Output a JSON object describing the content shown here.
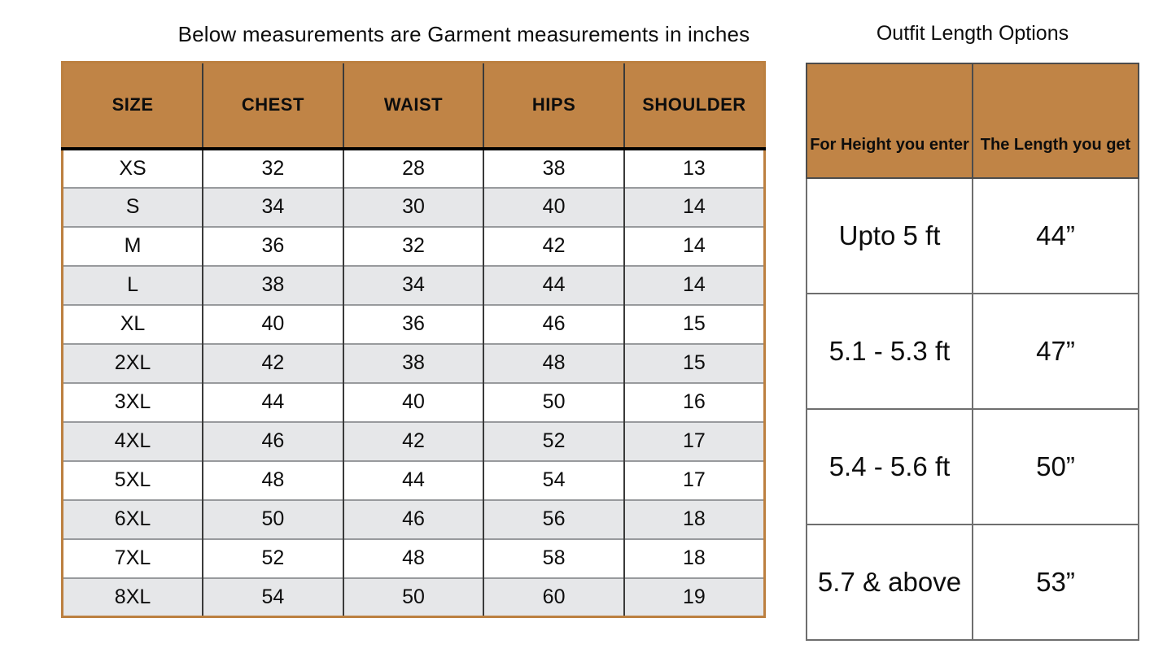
{
  "left_table": {
    "title": "Below measurements are Garment measurements in inches",
    "columns": [
      "SIZE",
      "CHEST",
      "WAIST",
      "HIPS",
      "SHOULDER"
    ],
    "rows": [
      {
        "size": "XS",
        "chest": "32",
        "waist": "28",
        "hips": "38",
        "shoulder": "13"
      },
      {
        "size": "S",
        "chest": "34",
        "waist": "30",
        "hips": "40",
        "shoulder": "14"
      },
      {
        "size": "M",
        "chest": "36",
        "waist": "32",
        "hips": "42",
        "shoulder": "14"
      },
      {
        "size": "L",
        "chest": "38",
        "waist": "34",
        "hips": "44",
        "shoulder": "14"
      },
      {
        "size": "XL",
        "chest": "40",
        "waist": "36",
        "hips": "46",
        "shoulder": "15"
      },
      {
        "size": "2XL",
        "chest": "42",
        "waist": "38",
        "hips": "48",
        "shoulder": "15"
      },
      {
        "size": "3XL",
        "chest": "44",
        "waist": "40",
        "hips": "50",
        "shoulder": "16"
      },
      {
        "size": "4XL",
        "chest": "46",
        "waist": "42",
        "hips": "52",
        "shoulder": "17"
      },
      {
        "size": "5XL",
        "chest": "48",
        "waist": "44",
        "hips": "54",
        "shoulder": "17"
      },
      {
        "size": "6XL",
        "chest": "50",
        "waist": "46",
        "hips": "56",
        "shoulder": "18"
      },
      {
        "size": "7XL",
        "chest": "52",
        "waist": "48",
        "hips": "58",
        "shoulder": "18"
      },
      {
        "size": "8XL",
        "chest": "54",
        "waist": "50",
        "hips": "60",
        "shoulder": "19"
      }
    ]
  },
  "right_table": {
    "title": "Outfit Length Options",
    "columns": [
      "For Height you enter",
      "The Length you get"
    ],
    "rows": [
      {
        "height_range": "Upto 5 ft",
        "length": "44”"
      },
      {
        "height_range": "5.1 - 5.3 ft",
        "length": "47”"
      },
      {
        "height_range": "5.4 - 5.6 ft",
        "length": "50”"
      },
      {
        "height_range": "5.7 & above",
        "length": "53”"
      }
    ]
  },
  "colors": {
    "header_bg": "#c08446",
    "alt_row_bg": "#e6e7e9",
    "left_table_border": "#bc8040",
    "grid_line_gray": "#989a9d",
    "column_line_dark": "#3a3a3a",
    "header_underline": "#000000",
    "right_table_border": "#6e6e6e"
  }
}
